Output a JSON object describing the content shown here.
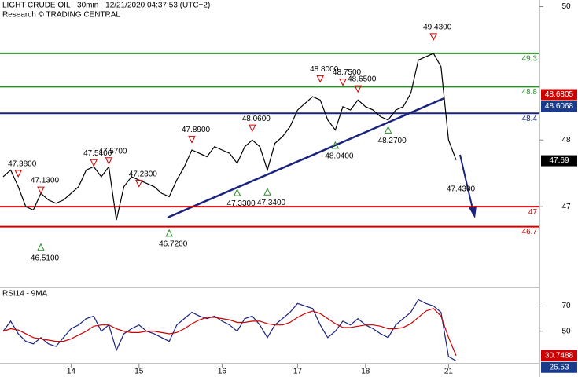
{
  "chart_data": [
    {
      "type": "line",
      "title": "LIGHT CRUDE OIL - 30min - 12/21/2020 04:37:53 (UTC+2)",
      "subtitle": "Research © TRADING CENTRAL",
      "ylim": [
        45.8,
        50.1
      ],
      "yticks": [
        47,
        48,
        50
      ],
      "series": [
        {
          "color": "#000000",
          "values": [
            47.45,
            47.55,
            47.3,
            47.0,
            46.95,
            47.2,
            47.1,
            47.05,
            47.1,
            47.2,
            47.3,
            47.55,
            47.6,
            47.45,
            47.6,
            46.8,
            47.3,
            47.45,
            47.4,
            47.35,
            47.3,
            47.2,
            47.15,
            47.4,
            47.6,
            47.85,
            47.8,
            47.75,
            47.9,
            47.85,
            47.8,
            47.65,
            47.9,
            48.0,
            47.9,
            47.55,
            47.95,
            48.05,
            48.2,
            48.45,
            48.55,
            48.65,
            48.6,
            48.3,
            48.15,
            48.5,
            48.45,
            48.6,
            48.5,
            48.45,
            48.35,
            48.3,
            48.45,
            48.5,
            48.7,
            49.2,
            49.25,
            49.3,
            49.1,
            48.0,
            47.7
          ]
        }
      ],
      "levels": [
        {
          "value": 49.3,
          "color": "#2e8b2e"
        },
        {
          "value": 48.8,
          "color": "#2e8b2e"
        },
        {
          "value": 48.4,
          "color": "#1a237e"
        },
        {
          "value": 47,
          "color": "#cc0000"
        },
        {
          "value": 46.7,
          "color": "#cc0000"
        }
      ],
      "pivots": [
        {
          "x": 2,
          "value": 47.38,
          "label": "47.3800",
          "kind": "high"
        },
        {
          "x": 5,
          "value": 47.13,
          "label": "47.1300",
          "kind": "high"
        },
        {
          "x": 5,
          "value": 46.51,
          "label": "46.5100",
          "kind": "low"
        },
        {
          "x": 12,
          "value": 47.54,
          "label": "47.5400",
          "kind": "high"
        },
        {
          "x": 14,
          "value": 47.57,
          "label": "47.5700",
          "kind": "high"
        },
        {
          "x": 18,
          "value": 47.23,
          "label": "47.2300",
          "kind": "high"
        },
        {
          "x": 22,
          "value": 46.72,
          "label": "46.7200",
          "kind": "low"
        },
        {
          "x": 25,
          "value": 47.89,
          "label": "47.8900",
          "kind": "high"
        },
        {
          "x": 31,
          "value": 47.33,
          "label": "47.3300",
          "kind": "low"
        },
        {
          "x": 33,
          "value": 48.06,
          "label": "48.0600",
          "kind": "high"
        },
        {
          "x": 35,
          "value": 47.34,
          "label": "47.3400",
          "kind": "low"
        },
        {
          "x": 42,
          "value": 48.8,
          "label": "48.8000",
          "kind": "high"
        },
        {
          "x": 44,
          "value": 48.04,
          "label": "48.0400",
          "kind": "low"
        },
        {
          "x": 45,
          "value": 48.75,
          "label": "48.7500",
          "kind": "high"
        },
        {
          "x": 47,
          "value": 48.65,
          "label": "48.6500",
          "kind": "high"
        },
        {
          "x": 51,
          "value": 48.27,
          "label": "48.2700",
          "kind": "low"
        },
        {
          "x": 57,
          "value": 49.43,
          "label": "49.4300",
          "kind": "high"
        }
      ],
      "target": {
        "value": 47.43,
        "label": "47.4300"
      },
      "current": [
        {
          "value": 48.6805,
          "color": "#cc0000"
        },
        {
          "value": 48.6068,
          "color": "#1a3a8a"
        },
        {
          "value": 47.69,
          "color": "#000000"
        }
      ]
    },
    {
      "type": "line",
      "title": "RSI14 - 9MA",
      "ylim": [
        25,
        84
      ],
      "yticks": [
        50,
        70
      ],
      "categories": [
        null,
        null,
        null,
        null,
        null,
        null,
        null,
        null,
        null,
        "14",
        null,
        null,
        null,
        null,
        null,
        null,
        null,
        null,
        "15",
        null,
        null,
        null,
        null,
        null,
        null,
        null,
        null,
        null,
        null,
        "16",
        null,
        null,
        null,
        null,
        null,
        null,
        null,
        null,
        null,
        "17",
        null,
        null,
        null,
        null,
        null,
        null,
        null,
        null,
        "18",
        null,
        null,
        null,
        null,
        null,
        null,
        null,
        null,
        null,
        null,
        "21",
        null
      ],
      "series": [
        {
          "color": "#1a237e",
          "values": [
            50,
            58,
            48,
            42,
            40,
            45,
            40,
            38,
            45,
            52,
            55,
            60,
            62,
            50,
            55,
            35,
            48,
            52,
            55,
            50,
            48,
            45,
            42,
            55,
            60,
            65,
            62,
            60,
            62,
            58,
            55,
            50,
            60,
            62,
            55,
            45,
            55,
            60,
            65,
            72,
            70,
            68,
            55,
            45,
            50,
            58,
            55,
            60,
            55,
            52,
            48,
            45,
            55,
            60,
            65,
            75,
            72,
            70,
            65,
            30,
            26.53
          ]
        },
        {
          "color": "#cc0000",
          "values": [
            50,
            52,
            51,
            48,
            45,
            44,
            43,
            42,
            42,
            44,
            47,
            50,
            54,
            55,
            55,
            52,
            50,
            49,
            49,
            50,
            50,
            49,
            48,
            49,
            52,
            56,
            59,
            61,
            61,
            60,
            59,
            57,
            57,
            58,
            58,
            56,
            55,
            55,
            57,
            61,
            64,
            66,
            64,
            60,
            56,
            53,
            53,
            54,
            55,
            55,
            54,
            52,
            52,
            53,
            56,
            61,
            66,
            68,
            62,
            45,
            30.7488
          ]
        }
      ],
      "current": [
        {
          "value": 30.7488,
          "color": "#cc0000"
        },
        {
          "value": 26.53,
          "color": "#1a3a8a"
        }
      ]
    }
  ]
}
